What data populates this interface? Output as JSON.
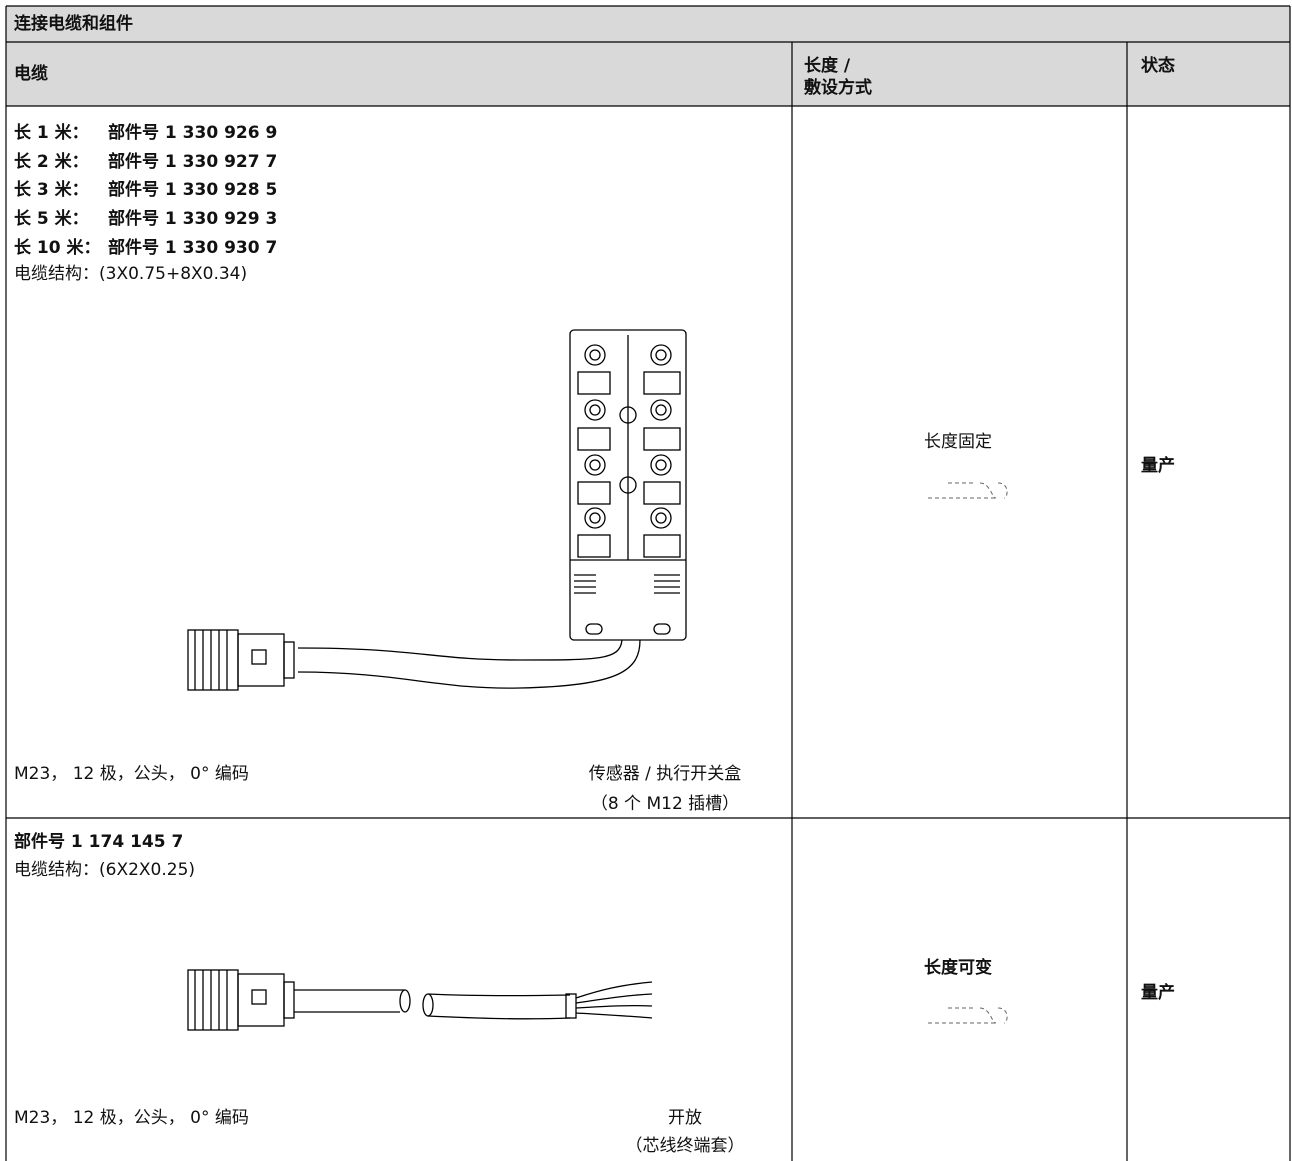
{
  "title": "连接电缆和组件",
  "header": {
    "cable": "电缆",
    "length": [
      "长度 /",
      "敷设方式"
    ],
    "status": "状态"
  },
  "rows": [
    {
      "parts": [
        {
          "label": "长 1 米：",
          "value": "部件号 1 330 926 9"
        },
        {
          "label": "长 2 米：",
          "value": "部件号 1 330 927 7"
        },
        {
          "label": "长 3 米：",
          "value": "部件号 1 330 928 5"
        },
        {
          "label": "长 5 米：",
          "value": "部件号 1 330 929 3"
        },
        {
          "label": "长 10 米：",
          "value": "部件号 1 330 930 7"
        }
      ],
      "structure": "电缆结构：(3X0.75+8X0.34)",
      "connector": "M23， 12 极，公头， 0° 编码",
      "target": [
        "传感器 / 执行开关盒",
        "（8 个 M12 插槽）"
      ],
      "length": "长度固定",
      "status": "量产"
    },
    {
      "part": "部件号 1 174 145 7",
      "structure": "电缆结构：(6X2X0.25)",
      "connector": "M23， 12 极，公头， 0° 编码",
      "target": [
        "开放",
        "（芯线终端套）"
      ],
      "length": "长度可变",
      "status": "量产"
    }
  ]
}
